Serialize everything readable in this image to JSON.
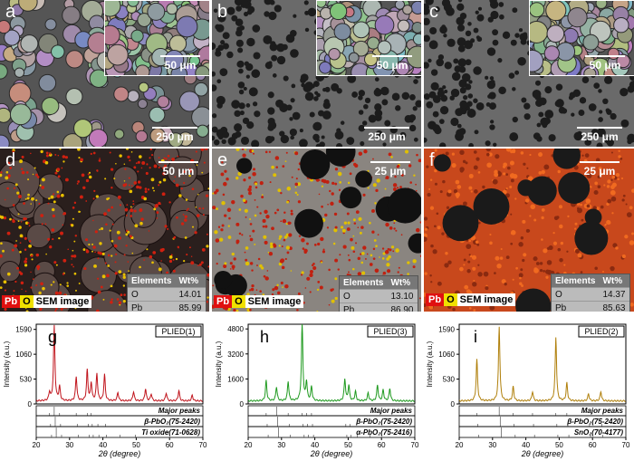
{
  "panels_sem": [
    {
      "letter": "a",
      "inset_scale": "50 μm",
      "main_scale": "250 μm"
    },
    {
      "letter": "b",
      "inset_scale": "50 μm",
      "main_scale": "250 μm"
    },
    {
      "letter": "c",
      "inset_scale": "50 μm",
      "main_scale": "250 μm"
    }
  ],
  "panels_eds": [
    {
      "letter": "d",
      "scale": "50 μm",
      "table": {
        "headers": [
          "Elements",
          "Wt%"
        ],
        "rows": [
          [
            "O",
            "14.01"
          ],
          [
            "Pb",
            "85.99"
          ]
        ]
      }
    },
    {
      "letter": "e",
      "scale": "25 μm",
      "table": {
        "headers": [
          "Elements",
          "Wt%"
        ],
        "rows": [
          [
            "O",
            "13.10"
          ],
          [
            "Pb",
            "86.90"
          ]
        ]
      }
    },
    {
      "letter": "f",
      "scale": "25 μm",
      "table": {
        "headers": [
          "Elements",
          "Wt%"
        ],
        "rows": [
          [
            "O",
            "14.37"
          ],
          [
            "Pb",
            "85.63"
          ]
        ]
      }
    }
  ],
  "legend": {
    "pb": "Pb",
    "o": "O",
    "sem": "SEM image"
  },
  "colors": {
    "g": "#c0141c",
    "h": "#1f9a1f",
    "i": "#b0800c",
    "pb_box": "#e01010",
    "o_box": "#f0e000"
  },
  "chart_data": [
    {
      "type": "line",
      "letter": "g",
      "sample": "PLIED(1)",
      "xlabel": "2θ (degree)",
      "ylabel": "Intensity (a.u.)",
      "xlim": [
        20,
        70
      ],
      "ylim": [
        0,
        1700
      ],
      "xticks": [
        20,
        30,
        40,
        50,
        60,
        70
      ],
      "yticks": [
        0,
        530,
        1060,
        1590
      ],
      "peaks": [
        [
          24,
          180
        ],
        [
          25.4,
          1590
        ],
        [
          27,
          300
        ],
        [
          32,
          520
        ],
        [
          35.3,
          650
        ],
        [
          36.5,
          380
        ],
        [
          38.2,
          580
        ],
        [
          40.5,
          560
        ],
        [
          44.5,
          180
        ],
        [
          49.2,
          200
        ],
        [
          52.8,
          260
        ],
        [
          54.5,
          150
        ],
        [
          59,
          170
        ],
        [
          62.8,
          220
        ],
        [
          66.8,
          120
        ]
      ],
      "ref_labels": [
        "Major peaks",
        "β-PbO₂(75-2420)",
        "Ti oxide(71-0628)"
      ]
    },
    {
      "type": "line",
      "letter": "h",
      "sample": "PLIED(3)",
      "xlabel": "2θ (degree)",
      "ylabel": "Intensity (a.u.)",
      "xlim": [
        20,
        70
      ],
      "ylim": [
        0,
        5100
      ],
      "xticks": [
        20,
        30,
        40,
        50,
        60,
        70
      ],
      "yticks": [
        0,
        1600,
        3200,
        4800
      ],
      "peaks": [
        [
          25.4,
          1300
        ],
        [
          28.5,
          900
        ],
        [
          32,
          1250
        ],
        [
          36.2,
          4900
        ],
        [
          37.5,
          1200
        ],
        [
          39,
          900
        ],
        [
          49,
          1400
        ],
        [
          50.2,
          1000
        ],
        [
          52.2,
          600
        ],
        [
          56,
          500
        ],
        [
          58.8,
          1000
        ],
        [
          60.5,
          700
        ],
        [
          62.5,
          800
        ]
      ],
      "ref_labels": [
        "Major peaks",
        "β-PbO₂(75-2420)",
        "α-PbO₂(75-2416)"
      ]
    },
    {
      "type": "line",
      "letter": "i",
      "sample": "PLIED(2)",
      "xlabel": "2θ (degree)",
      "ylabel": "Intensity (a.u.)",
      "xlim": [
        20,
        70
      ],
      "ylim": [
        0,
        1700
      ],
      "xticks": [
        20,
        30,
        40,
        50,
        60,
        70
      ],
      "yticks": [
        0,
        530,
        1060,
        1590
      ],
      "peaks": [
        [
          25.3,
          880
        ],
        [
          32,
          1590
        ],
        [
          36.2,
          300
        ],
        [
          42,
          200
        ],
        [
          49,
          1360
        ],
        [
          52.3,
          380
        ],
        [
          58.8,
          150
        ],
        [
          62.5,
          200
        ]
      ],
      "ref_labels": [
        "Major peaks",
        "β-PbO₂(75-2420)",
        "SnO₂(70-4177)"
      ]
    }
  ]
}
